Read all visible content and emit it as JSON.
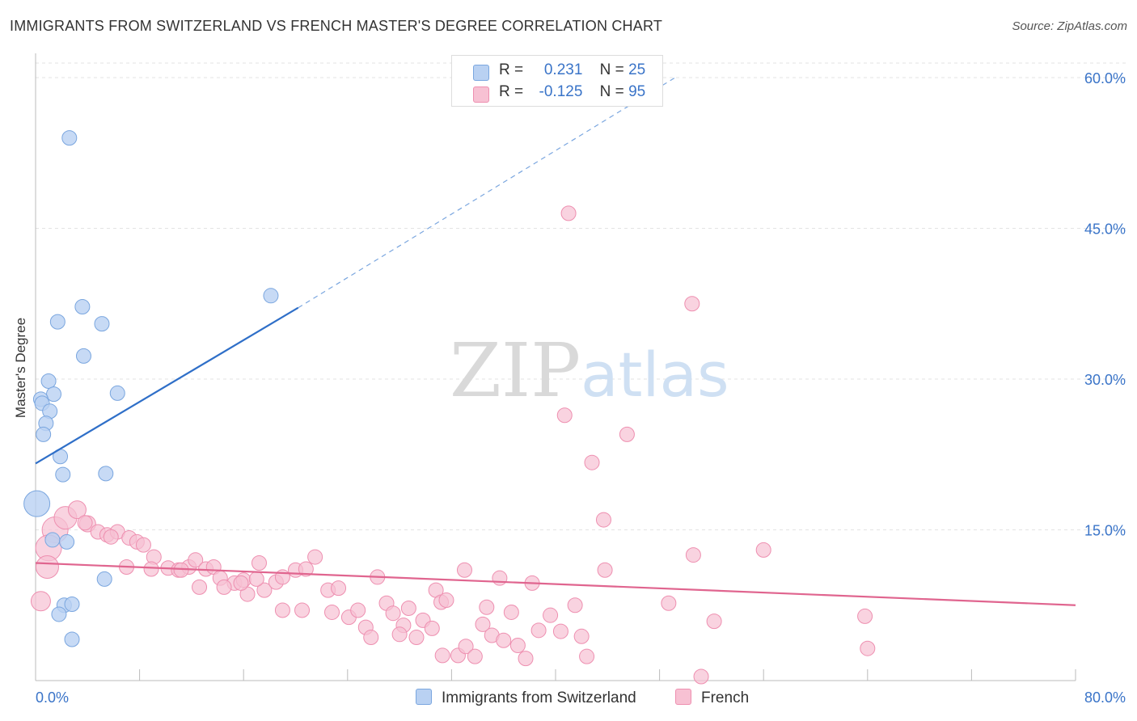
{
  "header": {
    "title": "IMMIGRANTS FROM SWITZERLAND VS FRENCH MASTER'S DEGREE CORRELATION CHART",
    "source": "Source: ZipAtlas.com"
  },
  "legend": {
    "rows": [
      {
        "r_label": "R =",
        "r_value": "0.231",
        "n_label": "N =",
        "n_value": "25"
      },
      {
        "r_label": "R =",
        "r_value": "-0.125",
        "n_label": "N =",
        "n_value": "95"
      }
    ]
  },
  "bottom_legend": {
    "series1": "Immigrants from Switzerland",
    "series2": "French"
  },
  "watermark": {
    "zip": "ZIP",
    "atlas": "atlas"
  },
  "colors": {
    "blue_fill": "#b9d1f2",
    "blue_stroke": "#7aa6df",
    "blue_line": "#2f6fc8",
    "pink_fill": "#f7c1d3",
    "pink_stroke": "#ee8fb0",
    "pink_line": "#e0658f",
    "tick_label": "#3a74c8",
    "grid": "#e3e3e3"
  },
  "chart_data": {
    "type": "scatter",
    "title": "IMMIGRANTS FROM SWITZERLAND VS FRENCH MASTER'S DEGREE CORRELATION CHART",
    "xlabel": "",
    "ylabel": "Master's Degree",
    "xlim": [
      0,
      80
    ],
    "ylim": [
      0,
      60
    ],
    "x_tick_labels": [
      "0.0%",
      "80.0%"
    ],
    "y_ticks": [
      15,
      30,
      45,
      60
    ],
    "y_tick_labels": [
      "15.0%",
      "30.0%",
      "45.0%",
      "60.0%"
    ],
    "grid": true,
    "legend_position": "top-center",
    "series": [
      {
        "name": "Immigrants from Switzerland",
        "r": 0.231,
        "n": 25,
        "trend": {
          "x": [
            0,
            20.2
          ],
          "y": [
            21.6,
            37.1
          ],
          "dashed_to": [
            49.2,
            60
          ]
        },
        "points": [
          [
            2.6,
            54.0
          ],
          [
            3.6,
            37.2
          ],
          [
            1.7,
            35.7
          ],
          [
            5.1,
            35.5
          ],
          [
            18.1,
            38.3
          ],
          [
            3.7,
            32.3
          ],
          [
            1.0,
            29.8
          ],
          [
            1.4,
            28.5
          ],
          [
            0.4,
            28.0
          ],
          [
            6.3,
            28.6
          ],
          [
            0.5,
            27.6
          ],
          [
            1.1,
            26.8
          ],
          [
            0.8,
            25.6
          ],
          [
            0.6,
            24.5
          ],
          [
            1.9,
            22.3
          ],
          [
            2.1,
            20.5
          ],
          [
            5.4,
            20.6
          ],
          [
            0.1,
            17.6
          ],
          [
            1.3,
            14.0
          ],
          [
            2.4,
            13.8
          ],
          [
            5.3,
            10.1
          ],
          [
            2.2,
            7.5
          ],
          [
            2.8,
            7.6
          ],
          [
            1.8,
            6.6
          ],
          [
            2.8,
            4.1
          ]
        ],
        "sizes": [
          9,
          9,
          9,
          9,
          9,
          9,
          9,
          9,
          9,
          9,
          9,
          9,
          9,
          9,
          9,
          9,
          9,
          16,
          9,
          9,
          9,
          9,
          9,
          9,
          9
        ]
      },
      {
        "name": "French",
        "r": -0.125,
        "n": 95,
        "trend": {
          "x": [
            0,
            80
          ],
          "y": [
            11.7,
            7.5
          ]
        },
        "points": [
          [
            41.0,
            46.5
          ],
          [
            50.5,
            37.5
          ],
          [
            40.7,
            26.4
          ],
          [
            45.5,
            24.5
          ],
          [
            42.8,
            21.7
          ],
          [
            43.7,
            16.0
          ],
          [
            50.6,
            12.5
          ],
          [
            56.0,
            13.0
          ],
          [
            1.5,
            15.0
          ],
          [
            1.0,
            13.2
          ],
          [
            0.9,
            11.3
          ],
          [
            0.4,
            7.9
          ],
          [
            2.3,
            16.2
          ],
          [
            3.2,
            17.0
          ],
          [
            4.0,
            15.6
          ],
          [
            4.8,
            14.8
          ],
          [
            5.5,
            14.5
          ],
          [
            6.3,
            14.8
          ],
          [
            7.2,
            14.2
          ],
          [
            7.8,
            13.8
          ],
          [
            8.3,
            13.5
          ],
          [
            9.1,
            12.3
          ],
          [
            10.2,
            11.2
          ],
          [
            11.0,
            11.0
          ],
          [
            11.8,
            11.3
          ],
          [
            12.3,
            12.0
          ],
          [
            13.1,
            11.1
          ],
          [
            13.7,
            11.3
          ],
          [
            8.9,
            11.1
          ],
          [
            7.0,
            11.3
          ],
          [
            14.2,
            10.2
          ],
          [
            15.3,
            9.7
          ],
          [
            16.0,
            10.0
          ],
          [
            17.2,
            11.7
          ],
          [
            16.3,
            8.6
          ],
          [
            17.6,
            9.0
          ],
          [
            18.5,
            9.8
          ],
          [
            19.0,
            10.3
          ],
          [
            20.0,
            11.0
          ],
          [
            20.8,
            11.1
          ],
          [
            21.5,
            12.3
          ],
          [
            22.5,
            9.0
          ],
          [
            23.3,
            9.2
          ],
          [
            17.0,
            10.1
          ],
          [
            14.5,
            9.3
          ],
          [
            15.8,
            9.7
          ],
          [
            19.0,
            7.0
          ],
          [
            20.5,
            7.0
          ],
          [
            22.8,
            6.8
          ],
          [
            24.1,
            6.3
          ],
          [
            24.8,
            7.0
          ],
          [
            25.4,
            5.3
          ],
          [
            25.8,
            4.3
          ],
          [
            26.3,
            10.3
          ],
          [
            27.0,
            7.7
          ],
          [
            27.5,
            6.7
          ],
          [
            28.3,
            5.5
          ],
          [
            28.7,
            7.2
          ],
          [
            29.3,
            4.3
          ],
          [
            29.8,
            6.0
          ],
          [
            30.5,
            5.2
          ],
          [
            30.8,
            9.0
          ],
          [
            31.2,
            7.8
          ],
          [
            31.6,
            8.0
          ],
          [
            32.5,
            2.5
          ],
          [
            33.1,
            3.4
          ],
          [
            33.8,
            2.4
          ],
          [
            34.4,
            5.6
          ],
          [
            34.7,
            7.3
          ],
          [
            35.1,
            4.5
          ],
          [
            35.7,
            10.2
          ],
          [
            36.0,
            4.0
          ],
          [
            36.6,
            6.8
          ],
          [
            37.1,
            3.5
          ],
          [
            37.7,
            2.2
          ],
          [
            38.2,
            9.7
          ],
          [
            38.7,
            5.0
          ],
          [
            39.6,
            6.5
          ],
          [
            40.4,
            4.9
          ],
          [
            41.5,
            7.5
          ],
          [
            42.4,
            2.4
          ],
          [
            43.8,
            11.0
          ],
          [
            48.7,
            7.7
          ],
          [
            51.2,
            0.4
          ],
          [
            52.2,
            5.9
          ],
          [
            63.8,
            6.4
          ],
          [
            64.0,
            3.2
          ],
          [
            31.3,
            2.5
          ],
          [
            42.0,
            4.4
          ],
          [
            28.0,
            4.6
          ],
          [
            12.6,
            9.3
          ],
          [
            11.2,
            11.0
          ],
          [
            5.8,
            14.3
          ],
          [
            3.8,
            15.7
          ],
          [
            33.0,
            11.0
          ]
        ],
        "sizes": [
          9,
          9,
          9,
          9,
          9,
          9,
          9,
          9,
          16,
          16,
          14,
          12,
          14,
          11,
          10,
          9,
          9,
          9,
          9,
          9,
          9,
          9,
          9,
          9,
          9,
          9,
          9,
          9,
          9,
          9,
          9,
          9,
          9,
          9,
          9,
          9,
          9,
          9,
          9,
          9,
          9,
          9,
          9,
          9,
          9,
          9,
          9,
          9,
          9,
          9,
          9,
          9,
          9,
          9,
          9,
          9,
          9,
          9,
          9,
          9,
          9,
          9,
          9,
          9,
          9,
          9,
          9,
          9,
          9,
          9,
          9,
          9,
          9,
          9,
          9,
          9,
          9,
          9,
          9,
          9,
          9,
          9,
          9,
          9,
          9,
          9,
          9,
          9,
          9,
          9,
          9,
          9,
          9,
          9,
          9
        ]
      }
    ]
  }
}
